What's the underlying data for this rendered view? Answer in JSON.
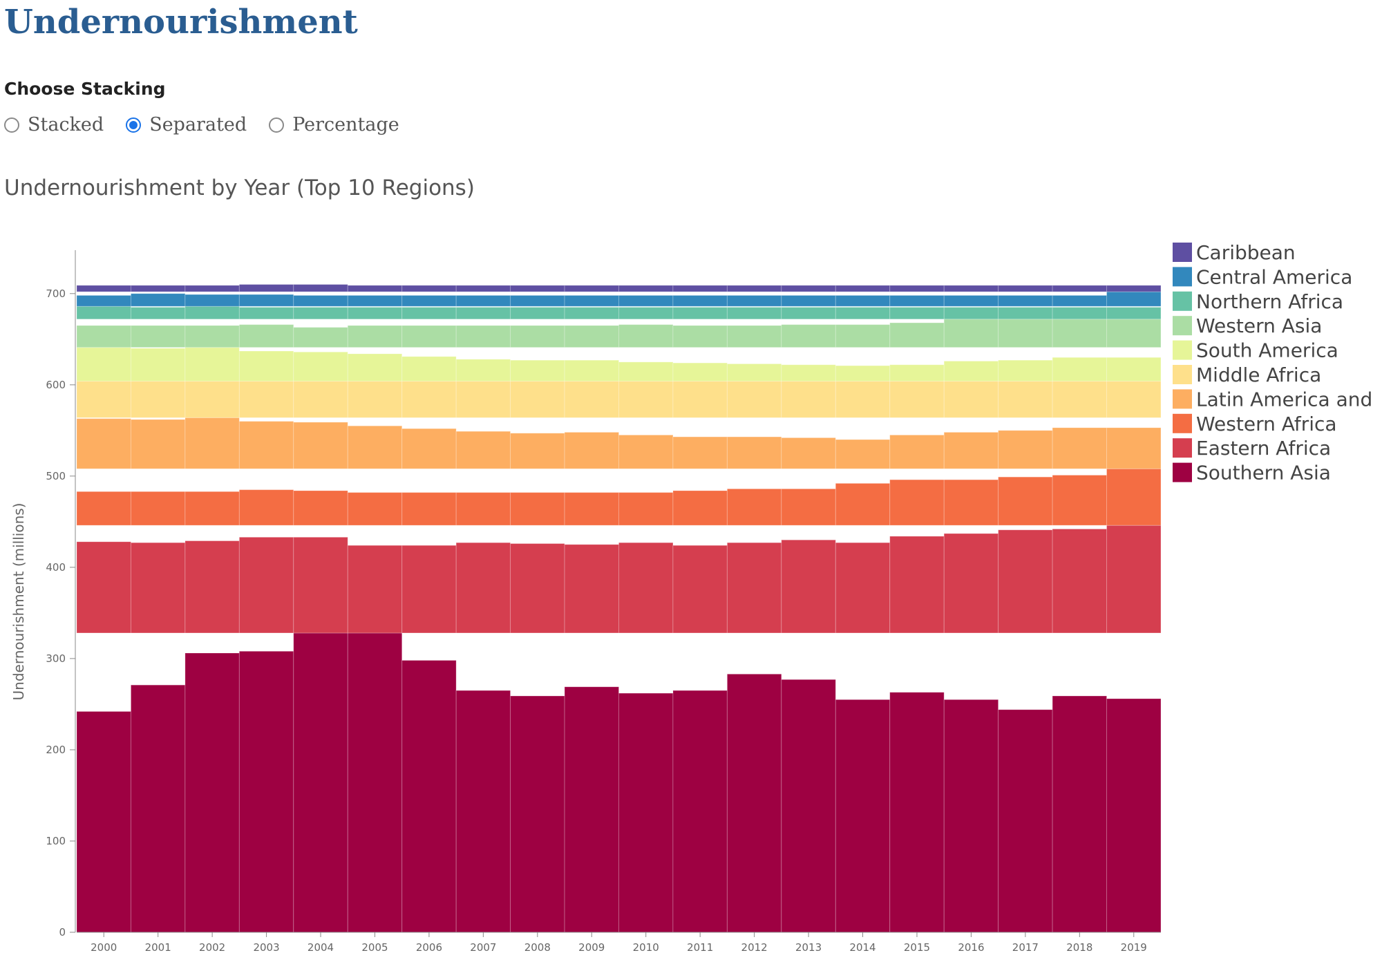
{
  "page": {
    "title": "Undernourishment",
    "stacking_label": "Choose Stacking",
    "stacking_options": [
      {
        "label": "Stacked",
        "checked": false
      },
      {
        "label": "Separated",
        "checked": true
      },
      {
        "label": "Percentage",
        "checked": false
      }
    ]
  },
  "chart_data": {
    "type": "bar",
    "title": "Undernourishment by Year (Top 10 Regions)",
    "xlabel": "",
    "ylabel": "Undernourishment (millions)",
    "ylim": [
      0,
      740
    ],
    "yticks": [
      0,
      100,
      200,
      300,
      400,
      500,
      600,
      700
    ],
    "mode": "separated",
    "legend_position": "right",
    "categories": [
      "2000",
      "2001",
      "2002",
      "2003",
      "2004",
      "2005",
      "2006",
      "2007",
      "2008",
      "2009",
      "2010",
      "2011",
      "2012",
      "2013",
      "2014",
      "2015",
      "2016",
      "2017",
      "2018",
      "2019"
    ],
    "series": [
      {
        "name": "Southern Asia",
        "color": "#9e0142",
        "values": [
          242,
          271,
          306,
          308,
          328,
          328,
          298,
          265,
          259,
          269,
          262,
          265,
          283,
          277,
          255,
          263,
          255,
          244,
          259,
          256
        ]
      },
      {
        "name": "Eastern Africa",
        "color": "#d53e4f",
        "values": [
          100,
          99,
          101,
          105,
          105,
          96,
          96,
          99,
          98,
          97,
          99,
          96,
          99,
          102,
          99,
          106,
          109,
          113,
          114,
          118
        ]
      },
      {
        "name": "Western Africa",
        "color": "#f46d43",
        "values": [
          37,
          37,
          37,
          39,
          38,
          36,
          36,
          36,
          36,
          36,
          36,
          38,
          40,
          40,
          46,
          50,
          50,
          53,
          55,
          62
        ]
      },
      {
        "name": "Latin America and",
        "color": "#fdae61",
        "values": [
          55,
          54,
          56,
          52,
          51,
          47,
          44,
          41,
          39,
          40,
          37,
          35,
          35,
          34,
          32,
          37,
          40,
          42,
          45,
          45
        ]
      },
      {
        "name": "Middle Africa",
        "color": "#fee08b",
        "values": [
          40,
          40,
          40,
          40,
          40,
          40,
          40,
          40,
          40,
          40,
          40,
          40,
          40,
          40,
          40,
          40,
          40,
          40,
          40,
          40
        ]
      },
      {
        "name": "South America",
        "color": "#e6f598",
        "values": [
          37,
          36,
          37,
          33,
          32,
          30,
          27,
          24,
          23,
          23,
          21,
          20,
          19,
          18,
          17,
          18,
          22,
          23,
          26,
          26
        ]
      },
      {
        "name": "Western Asia",
        "color": "#abdda4",
        "values": [
          24,
          24,
          24,
          25,
          22,
          24,
          24,
          24,
          24,
          24,
          25,
          24,
          24,
          25,
          25,
          27,
          31,
          31,
          31,
          31
        ]
      },
      {
        "name": "Northern Africa",
        "color": "#66c2a5",
        "values": [
          14,
          13,
          14,
          13,
          13,
          13,
          13,
          13,
          13,
          13,
          13,
          13,
          13,
          13,
          13,
          13,
          13,
          13,
          13,
          13
        ]
      },
      {
        "name": "Central America",
        "color": "#3288bd",
        "values": [
          12,
          14,
          13,
          13,
          12,
          12,
          12,
          12,
          12,
          12,
          12,
          12,
          12,
          12,
          12,
          12,
          12,
          12,
          12,
          16
        ]
      },
      {
        "name": "Caribbean",
        "color": "#5e4fa2",
        "values": [
          7,
          7,
          7,
          8,
          8,
          7,
          7,
          7,
          7,
          7,
          7,
          7,
          7,
          7,
          7,
          7,
          7,
          7,
          7,
          7
        ]
      }
    ]
  }
}
